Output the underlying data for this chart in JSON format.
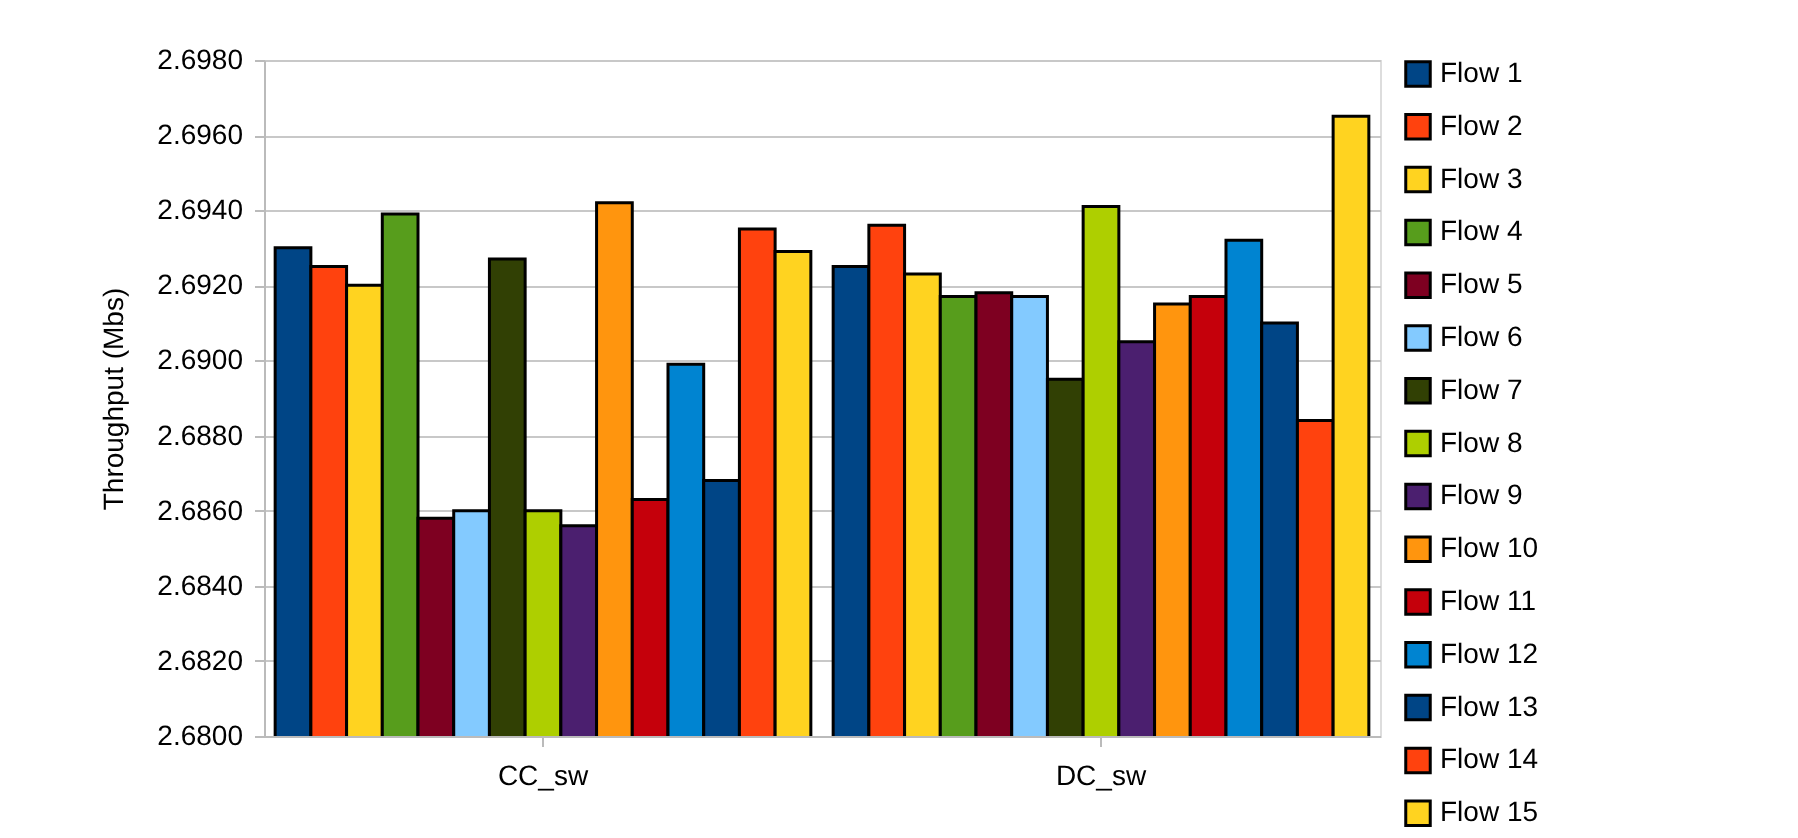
{
  "chart_data": {
    "type": "bar",
    "ylabel": "Throughput (Mbs)",
    "categories": [
      "CC_sw",
      "DC_sw"
    ],
    "ylim": [
      2.68,
      2.698
    ],
    "yticks": [
      {
        "value": 2.68,
        "label": "2.6800"
      },
      {
        "value": 2.682,
        "label": "2.6820"
      },
      {
        "value": 2.684,
        "label": "2.6840"
      },
      {
        "value": 2.686,
        "label": "2.6860"
      },
      {
        "value": 2.688,
        "label": "2.6880"
      },
      {
        "value": 2.69,
        "label": "2.6900"
      },
      {
        "value": 2.692,
        "label": "2.6920"
      },
      {
        "value": 2.694,
        "label": "2.6940"
      },
      {
        "value": 2.696,
        "label": "2.6960"
      },
      {
        "value": 2.698,
        "label": "2.6980"
      }
    ],
    "grid": "y",
    "legend": "right",
    "series": [
      {
        "name": "Flow 1",
        "color": "#004586",
        "values": [
          2.693,
          2.6925
        ]
      },
      {
        "name": "Flow 2",
        "color": "#ff420e",
        "values": [
          2.6925,
          2.6936
        ]
      },
      {
        "name": "Flow 3",
        "color": "#ffd320",
        "values": [
          2.692,
          2.6923
        ]
      },
      {
        "name": "Flow 4",
        "color": "#579d1c",
        "values": [
          2.6939,
          2.6917
        ]
      },
      {
        "name": "Flow 5",
        "color": "#7e0021",
        "values": [
          2.6858,
          2.6918
        ]
      },
      {
        "name": "Flow 6",
        "color": "#83caff",
        "values": [
          2.686,
          2.6917
        ]
      },
      {
        "name": "Flow 7",
        "color": "#314004",
        "values": [
          2.6927,
          2.6895
        ]
      },
      {
        "name": "Flow 8",
        "color": "#aecf00",
        "values": [
          2.686,
          2.6941
        ]
      },
      {
        "name": "Flow 9",
        "color": "#4b1f6f",
        "values": [
          2.6856,
          2.6905
        ]
      },
      {
        "name": "Flow 10",
        "color": "#ff950e",
        "values": [
          2.6942,
          2.6915
        ]
      },
      {
        "name": "Flow 11",
        "color": "#c5000b",
        "values": [
          2.6863,
          2.6917
        ]
      },
      {
        "name": "Flow 12",
        "color": "#0084d1",
        "values": [
          2.6899,
          2.6932
        ]
      },
      {
        "name": "Flow 13",
        "color": "#004586",
        "values": [
          2.6868,
          2.691
        ]
      },
      {
        "name": "Flow 14",
        "color": "#ff420e",
        "values": [
          2.6935,
          2.6884
        ]
      },
      {
        "name": "Flow 15",
        "color": "#ffd320",
        "values": [
          2.6929,
          2.6965
        ]
      }
    ]
  }
}
